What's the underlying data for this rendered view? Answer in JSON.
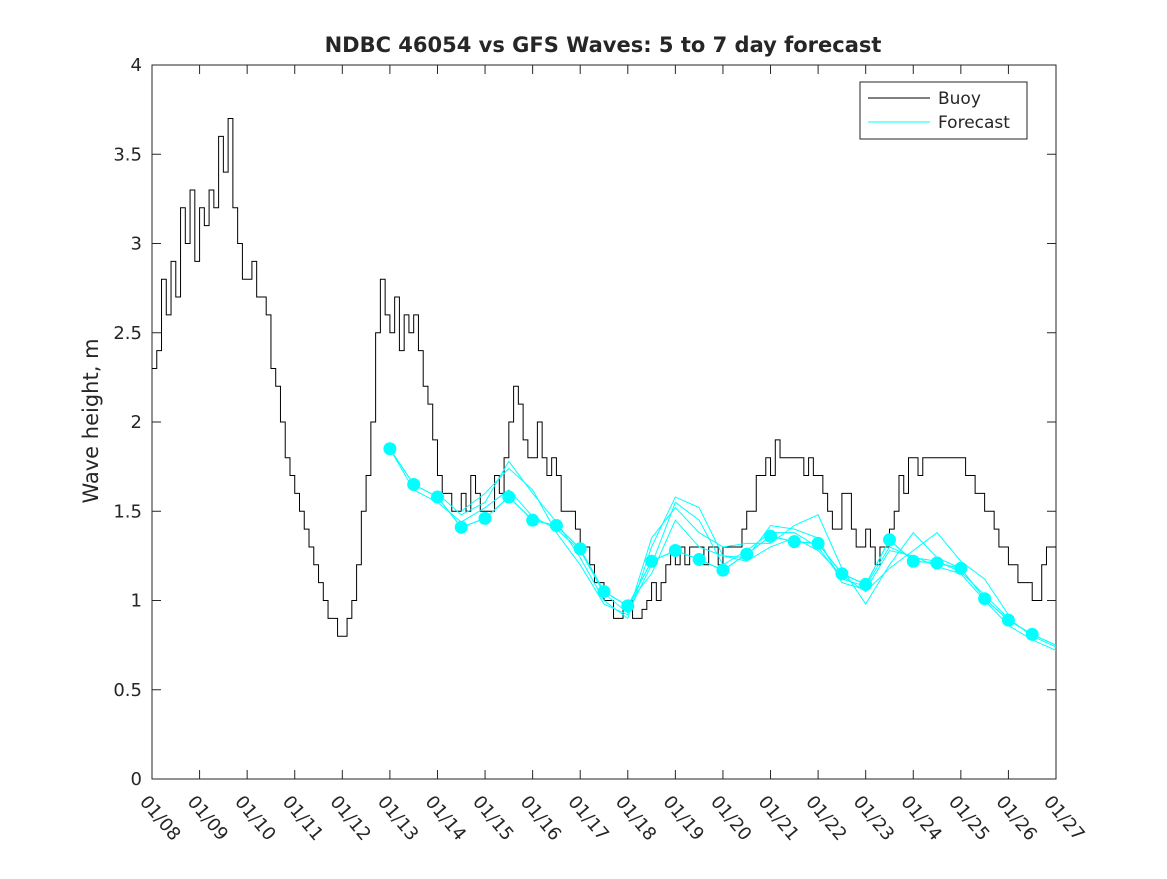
{
  "chart_data": {
    "type": "line",
    "title": "NDBC 46054 vs GFS Waves: 5 to 7 day forecast",
    "xlabel": "",
    "ylabel": "Wave height, m",
    "xlim": [
      0,
      19
    ],
    "ylim": [
      0,
      4
    ],
    "x_unit": "days since 01/08",
    "x_ticks": [
      0,
      1,
      2,
      3,
      4,
      5,
      6,
      7,
      8,
      9,
      10,
      11,
      12,
      13,
      14,
      15,
      16,
      17,
      18,
      19
    ],
    "x_tick_labels": [
      "01/08",
      "01/09",
      "01/10",
      "01/11",
      "01/12",
      "01/13",
      "01/14",
      "01/15",
      "01/16",
      "01/17",
      "01/18",
      "01/19",
      "01/20",
      "01/21",
      "01/22",
      "01/23",
      "01/24",
      "01/25",
      "01/26",
      "01/27"
    ],
    "y_ticks": [
      0,
      0.5,
      1,
      1.5,
      2,
      2.5,
      3,
      3.5,
      4
    ],
    "y_tick_labels": [
      "0",
      "0.5",
      "1",
      "1.5",
      "2",
      "2.5",
      "3",
      "3.5",
      "4"
    ],
    "grid": false,
    "legend": {
      "position": "top-right",
      "entries": [
        "Buoy",
        "Forecast"
      ]
    },
    "colors": {
      "buoy": "#000000",
      "forecast": "#00ffff",
      "axis": "#262626"
    },
    "series": [
      {
        "name": "Buoy",
        "values": [
          [
            0.0,
            2.3
          ],
          [
            0.1,
            2.4
          ],
          [
            0.2,
            2.8
          ],
          [
            0.3,
            2.6
          ],
          [
            0.4,
            2.9
          ],
          [
            0.5,
            2.7
          ],
          [
            0.6,
            3.2
          ],
          [
            0.7,
            3.0
          ],
          [
            0.8,
            3.3
          ],
          [
            0.9,
            2.9
          ],
          [
            1.0,
            3.2
          ],
          [
            1.1,
            3.1
          ],
          [
            1.2,
            3.3
          ],
          [
            1.3,
            3.2
          ],
          [
            1.4,
            3.6
          ],
          [
            1.5,
            3.4
          ],
          [
            1.6,
            3.7
          ],
          [
            1.7,
            3.2
          ],
          [
            1.8,
            3.0
          ],
          [
            1.9,
            2.8
          ],
          [
            2.0,
            2.8
          ],
          [
            2.1,
            2.9
          ],
          [
            2.2,
            2.7
          ],
          [
            2.3,
            2.7
          ],
          [
            2.4,
            2.6
          ],
          [
            2.5,
            2.3
          ],
          [
            2.6,
            2.2
          ],
          [
            2.7,
            2.0
          ],
          [
            2.8,
            1.8
          ],
          [
            2.9,
            1.7
          ],
          [
            3.0,
            1.6
          ],
          [
            3.1,
            1.5
          ],
          [
            3.2,
            1.4
          ],
          [
            3.3,
            1.3
          ],
          [
            3.4,
            1.2
          ],
          [
            3.5,
            1.1
          ],
          [
            3.6,
            1.0
          ],
          [
            3.7,
            0.9
          ],
          [
            3.8,
            0.9
          ],
          [
            3.9,
            0.8
          ],
          [
            4.0,
            0.8
          ],
          [
            4.1,
            0.9
          ],
          [
            4.2,
            1.0
          ],
          [
            4.3,
            1.2
          ],
          [
            4.4,
            1.5
          ],
          [
            4.5,
            1.7
          ],
          [
            4.6,
            2.0
          ],
          [
            4.7,
            2.5
          ],
          [
            4.8,
            2.8
          ],
          [
            4.9,
            2.6
          ],
          [
            5.0,
            2.5
          ],
          [
            5.1,
            2.7
          ],
          [
            5.2,
            2.4
          ],
          [
            5.3,
            2.6
          ],
          [
            5.4,
            2.5
          ],
          [
            5.5,
            2.6
          ],
          [
            5.6,
            2.4
          ],
          [
            5.7,
            2.2
          ],
          [
            5.8,
            2.1
          ],
          [
            5.9,
            1.9
          ],
          [
            6.0,
            1.7
          ],
          [
            6.1,
            1.6
          ],
          [
            6.2,
            1.6
          ],
          [
            6.3,
            1.5
          ],
          [
            6.4,
            1.5
          ],
          [
            6.5,
            1.6
          ],
          [
            6.6,
            1.5
          ],
          [
            6.7,
            1.7
          ],
          [
            6.8,
            1.6
          ],
          [
            6.9,
            1.5
          ],
          [
            7.0,
            1.5
          ],
          [
            7.1,
            1.5
          ],
          [
            7.2,
            1.7
          ],
          [
            7.3,
            1.6
          ],
          [
            7.4,
            1.8
          ],
          [
            7.5,
            2.0
          ],
          [
            7.6,
            2.2
          ],
          [
            7.7,
            2.1
          ],
          [
            7.8,
            1.9
          ],
          [
            7.9,
            1.8
          ],
          [
            8.0,
            1.8
          ],
          [
            8.1,
            2.0
          ],
          [
            8.2,
            1.8
          ],
          [
            8.3,
            1.7
          ],
          [
            8.4,
            1.8
          ],
          [
            8.5,
            1.7
          ],
          [
            8.6,
            1.5
          ],
          [
            8.7,
            1.5
          ],
          [
            8.8,
            1.5
          ],
          [
            8.9,
            1.4
          ],
          [
            9.0,
            1.3
          ],
          [
            9.1,
            1.3
          ],
          [
            9.2,
            1.2
          ],
          [
            9.3,
            1.1
          ],
          [
            9.4,
            1.1
          ],
          [
            9.5,
            1.0
          ],
          [
            9.6,
            1.0
          ],
          [
            9.7,
            0.9
          ],
          [
            9.8,
            0.9
          ],
          [
            9.9,
            0.95
          ],
          [
            10.0,
            1.0
          ],
          [
            10.1,
            0.9
          ],
          [
            10.2,
            0.9
          ],
          [
            10.3,
            0.95
          ],
          [
            10.4,
            1.0
          ],
          [
            10.5,
            1.1
          ],
          [
            10.6,
            1.0
          ],
          [
            10.7,
            1.1
          ],
          [
            10.8,
            1.2
          ],
          [
            10.9,
            1.3
          ],
          [
            11.0,
            1.2
          ],
          [
            11.1,
            1.3
          ],
          [
            11.2,
            1.2
          ],
          [
            11.3,
            1.3
          ],
          [
            11.4,
            1.3
          ],
          [
            11.5,
            1.3
          ],
          [
            11.6,
            1.2
          ],
          [
            11.7,
            1.3
          ],
          [
            11.8,
            1.3
          ],
          [
            11.9,
            1.2
          ],
          [
            12.0,
            1.3
          ],
          [
            12.1,
            1.3
          ],
          [
            12.2,
            1.3
          ],
          [
            12.3,
            1.3
          ],
          [
            12.4,
            1.4
          ],
          [
            12.5,
            1.5
          ],
          [
            12.6,
            1.5
          ],
          [
            12.7,
            1.7
          ],
          [
            12.8,
            1.7
          ],
          [
            12.9,
            1.8
          ],
          [
            13.0,
            1.7
          ],
          [
            13.1,
            1.9
          ],
          [
            13.2,
            1.8
          ],
          [
            13.3,
            1.8
          ],
          [
            13.4,
            1.8
          ],
          [
            13.5,
            1.8
          ],
          [
            13.6,
            1.8
          ],
          [
            13.7,
            1.7
          ],
          [
            13.8,
            1.8
          ],
          [
            13.9,
            1.7
          ],
          [
            14.0,
            1.7
          ],
          [
            14.1,
            1.6
          ],
          [
            14.2,
            1.5
          ],
          [
            14.3,
            1.4
          ],
          [
            14.4,
            1.4
          ],
          [
            14.5,
            1.6
          ],
          [
            14.6,
            1.6
          ],
          [
            14.7,
            1.4
          ],
          [
            14.8,
            1.3
          ],
          [
            14.9,
            1.3
          ],
          [
            15.0,
            1.4
          ],
          [
            15.1,
            1.3
          ],
          [
            15.2,
            1.2
          ],
          [
            15.3,
            1.3
          ],
          [
            15.4,
            1.3
          ],
          [
            15.5,
            1.4
          ],
          [
            15.6,
            1.5
          ],
          [
            15.7,
            1.7
          ],
          [
            15.8,
            1.6
          ],
          [
            15.9,
            1.8
          ],
          [
            16.0,
            1.8
          ],
          [
            16.1,
            1.7
          ],
          [
            16.2,
            1.8
          ],
          [
            16.3,
            1.8
          ],
          [
            16.4,
            1.8
          ],
          [
            16.5,
            1.8
          ],
          [
            16.6,
            1.8
          ],
          [
            16.7,
            1.8
          ],
          [
            16.8,
            1.8
          ],
          [
            16.9,
            1.8
          ],
          [
            17.0,
            1.8
          ],
          [
            17.1,
            1.7
          ],
          [
            17.2,
            1.7
          ],
          [
            17.3,
            1.6
          ],
          [
            17.4,
            1.6
          ],
          [
            17.5,
            1.5
          ],
          [
            17.6,
            1.5
          ],
          [
            17.7,
            1.4
          ],
          [
            17.8,
            1.3
          ],
          [
            17.9,
            1.3
          ],
          [
            18.0,
            1.2
          ],
          [
            18.1,
            1.2
          ],
          [
            18.2,
            1.1
          ],
          [
            18.3,
            1.1
          ],
          [
            18.4,
            1.1
          ],
          [
            18.5,
            1.0
          ],
          [
            18.6,
            1.0
          ],
          [
            18.7,
            1.2
          ],
          [
            18.8,
            1.3
          ],
          [
            18.9,
            1.3
          ]
        ]
      },
      {
        "name": "Forecast",
        "values": [
          [
            5.0,
            1.85
          ],
          [
            5.5,
            1.65
          ],
          [
            6.0,
            1.58
          ],
          [
            6.5,
            1.41
          ],
          [
            7.0,
            1.46
          ],
          [
            7.5,
            1.58
          ],
          [
            8.0,
            1.45
          ],
          [
            8.5,
            1.42
          ],
          [
            9.0,
            1.29
          ],
          [
            9.5,
            1.05
          ],
          [
            10.0,
            0.97
          ],
          [
            10.5,
            1.22
          ],
          [
            11.0,
            1.28
          ],
          [
            11.5,
            1.23
          ],
          [
            12.0,
            1.17
          ],
          [
            12.5,
            1.26
          ],
          [
            13.0,
            1.36
          ],
          [
            13.5,
            1.33
          ],
          [
            14.0,
            1.32
          ],
          [
            14.5,
            1.15
          ],
          [
            15.0,
            1.09
          ],
          [
            15.5,
            1.34
          ],
          [
            16.0,
            1.22
          ],
          [
            16.5,
            1.21
          ],
          [
            17.0,
            1.18
          ],
          [
            17.5,
            1.01
          ],
          [
            18.0,
            0.89
          ],
          [
            18.5,
            0.81
          ],
          [
            19.0,
            0.75
          ]
        ]
      }
    ],
    "forecast_ensemble": [
      [
        [
          5.0,
          1.85
        ],
        [
          5.5,
          1.62
        ],
        [
          6.0,
          1.55
        ],
        [
          6.5,
          1.44
        ],
        [
          7.0,
          1.52
        ],
        [
          7.5,
          1.62
        ],
        [
          8.0,
          1.47
        ],
        [
          8.5,
          1.4
        ],
        [
          9.0,
          1.28
        ],
        [
          9.5,
          1.04
        ],
        [
          10.0,
          0.93
        ],
        [
          10.5,
          1.2
        ],
        [
          11.0,
          1.55
        ],
        [
          11.5,
          1.45
        ],
        [
          12.0,
          1.2
        ],
        [
          12.5,
          1.28
        ],
        [
          13.0,
          1.38
        ],
        [
          13.5,
          1.38
        ],
        [
          14.0,
          1.3
        ],
        [
          14.5,
          1.12
        ],
        [
          15.0,
          1.08
        ],
        [
          15.5,
          1.3
        ],
        [
          16.0,
          1.24
        ],
        [
          16.5,
          1.22
        ],
        [
          17.0,
          1.16
        ],
        [
          17.5,
          1.03
        ],
        [
          18.0,
          0.9
        ],
        [
          18.5,
          0.8
        ],
        [
          19.0,
          0.74
        ]
      ],
      [
        [
          6.0,
          1.6
        ],
        [
          6.5,
          1.48
        ],
        [
          7.0,
          1.55
        ],
        [
          7.5,
          1.78
        ],
        [
          8.0,
          1.6
        ],
        [
          8.5,
          1.44
        ],
        [
          9.0,
          1.24
        ],
        [
          9.5,
          1.0
        ],
        [
          10.0,
          0.9
        ],
        [
          10.5,
          1.3
        ],
        [
          11.0,
          1.58
        ],
        [
          11.5,
          1.52
        ],
        [
          12.0,
          1.25
        ],
        [
          12.5,
          1.24
        ],
        [
          13.0,
          1.42
        ],
        [
          13.5,
          1.4
        ],
        [
          14.0,
          1.35
        ],
        [
          14.5,
          1.1
        ],
        [
          15.0,
          1.06
        ],
        [
          15.5,
          1.28
        ],
        [
          16.0,
          1.25
        ],
        [
          16.5,
          1.19
        ],
        [
          17.0,
          1.15
        ],
        [
          17.5,
          1.0
        ],
        [
          18.0,
          0.86
        ],
        [
          18.5,
          0.78
        ],
        [
          19.0,
          0.72
        ]
      ],
      [
        [
          6.5,
          1.5
        ],
        [
          7.0,
          1.6
        ],
        [
          7.5,
          1.74
        ],
        [
          8.0,
          1.62
        ],
        [
          8.5,
          1.38
        ],
        [
          9.0,
          1.2
        ],
        [
          9.5,
          0.98
        ],
        [
          10.0,
          0.92
        ],
        [
          10.5,
          1.35
        ],
        [
          11.0,
          1.52
        ],
        [
          11.5,
          1.38
        ],
        [
          12.0,
          1.3
        ],
        [
          12.5,
          1.32
        ],
        [
          13.0,
          1.32
        ],
        [
          13.5,
          1.42
        ],
        [
          14.0,
          1.48
        ],
        [
          14.5,
          1.18
        ],
        [
          15.0,
          0.98
        ],
        [
          15.5,
          1.2
        ],
        [
          16.0,
          1.38
        ],
        [
          16.5,
          1.24
        ],
        [
          17.0,
          1.18
        ]
      ],
      [
        [
          10.0,
          0.98
        ],
        [
          10.5,
          1.15
        ],
        [
          11.0,
          1.45
        ],
        [
          11.5,
          1.3
        ],
        [
          12.0,
          1.25
        ],
        [
          12.5,
          1.22
        ],
        [
          13.0,
          1.3
        ],
        [
          13.5,
          1.35
        ],
        [
          14.0,
          1.28
        ],
        [
          14.5,
          1.14
        ],
        [
          15.0,
          1.05
        ],
        [
          15.5,
          1.18
        ],
        [
          16.0,
          1.28
        ],
        [
          16.5,
          1.38
        ],
        [
          17.0,
          1.22
        ],
        [
          17.5,
          1.12
        ],
        [
          18.0,
          0.92
        ]
      ]
    ]
  }
}
